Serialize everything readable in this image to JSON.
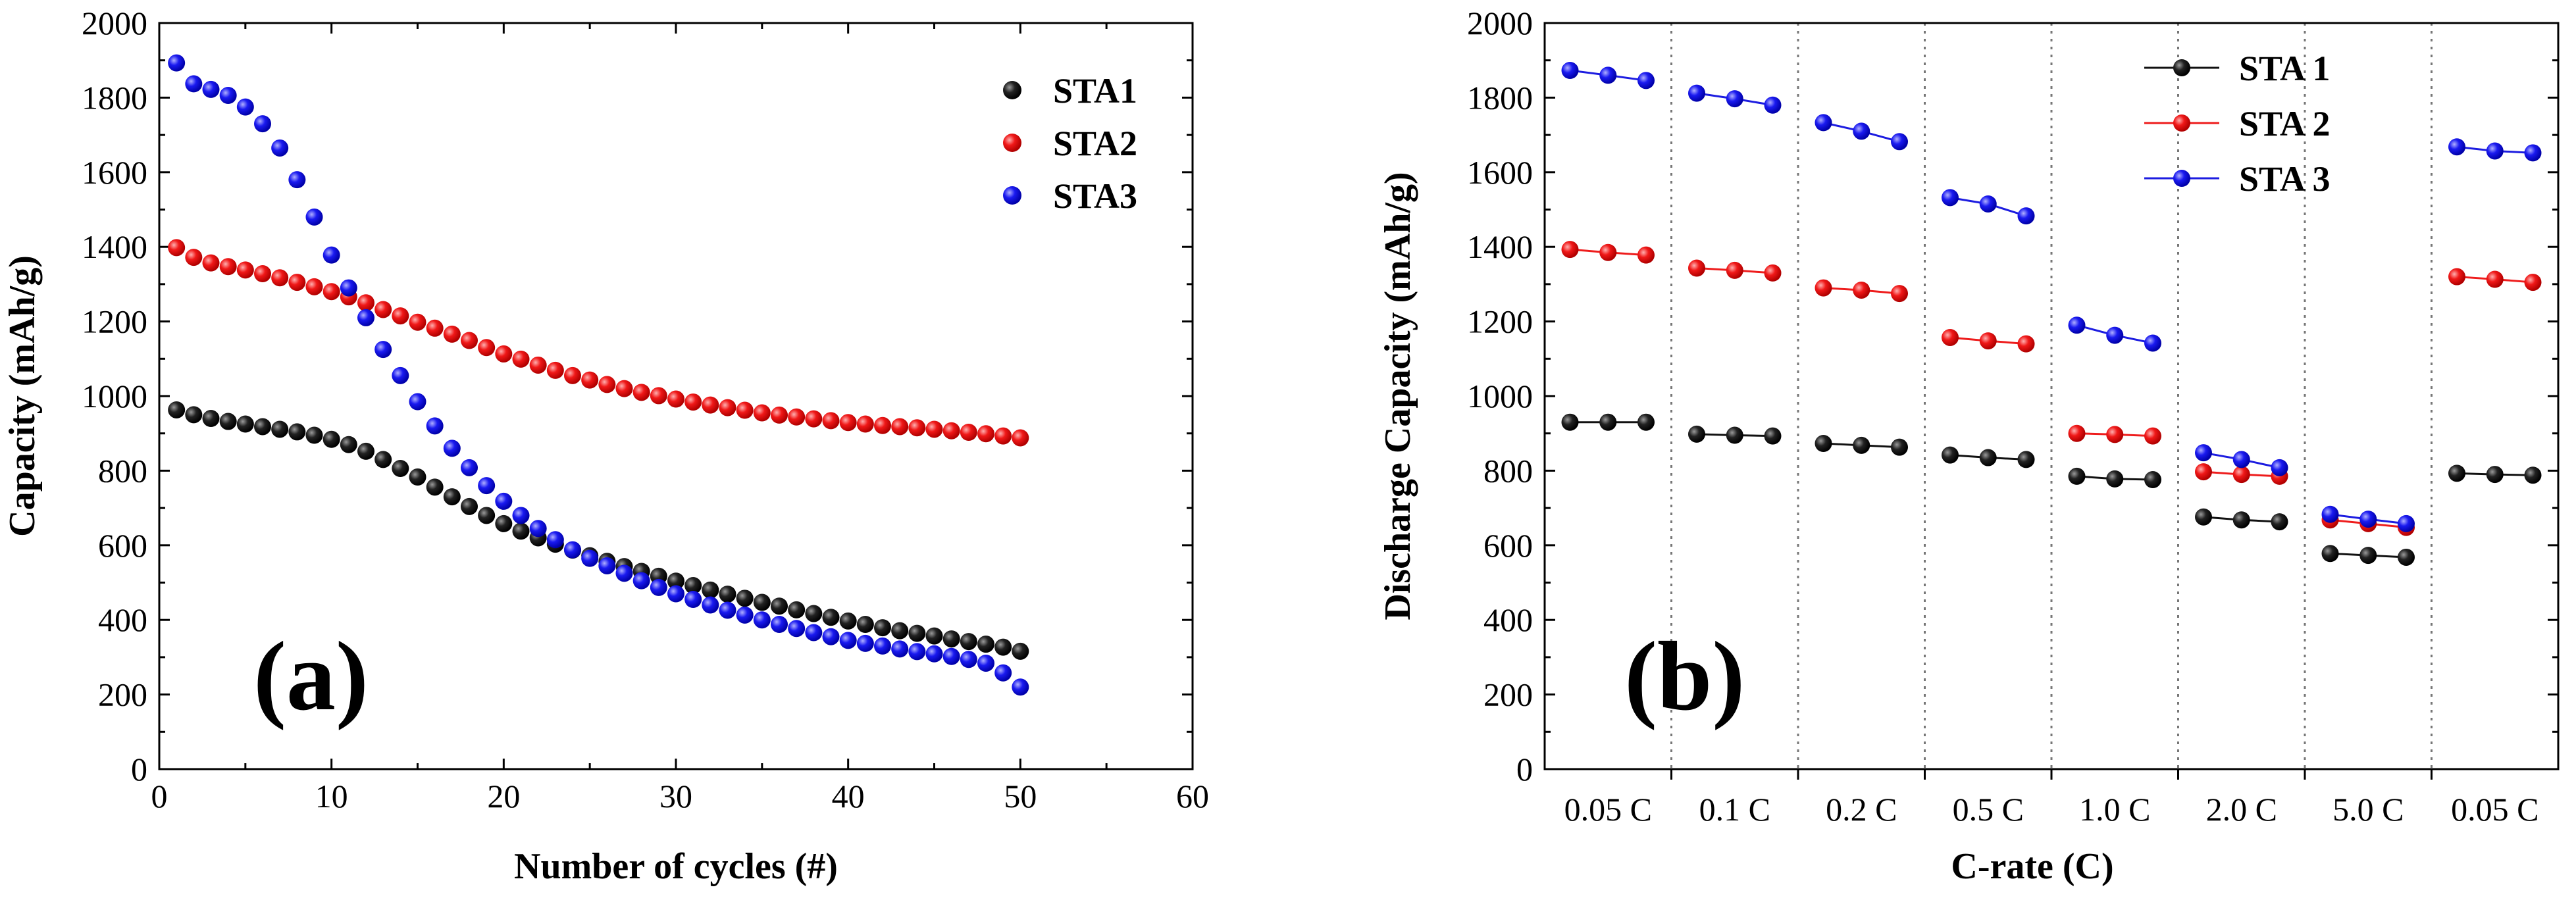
{
  "chart_data": [
    {
      "type": "scatter",
      "panel_label": "(a)",
      "xlabel": "Number of cycles (#)",
      "ylabel": "Capacity (mAh/g)",
      "xlim": [
        0,
        60
      ],
      "ylim": [
        0,
        2000
      ],
      "xticks": [
        "0",
        "10",
        "20",
        "30",
        "40",
        "50",
        "60"
      ],
      "yticks": [
        "0",
        "200",
        "400",
        "600",
        "800",
        "1000",
        "1200",
        "1400",
        "1600",
        "1800",
        "2000"
      ],
      "legend_position": "top-right",
      "x": [
        1,
        2,
        3,
        4,
        5,
        6,
        7,
        8,
        9,
        10,
        11,
        12,
        13,
        14,
        15,
        16,
        17,
        18,
        19,
        20,
        21,
        22,
        23,
        24,
        25,
        26,
        27,
        28,
        29,
        30,
        31,
        32,
        33,
        34,
        35,
        36,
        37,
        38,
        39,
        40,
        41,
        42,
        43,
        44,
        45,
        46,
        47,
        48,
        49,
        50
      ],
      "series": [
        {
          "name": "STA1",
          "color": "#111111",
          "values": [
            963,
            950,
            940,
            932,
            925,
            918,
            911,
            904,
            895,
            884,
            870,
            852,
            830,
            806,
            783,
            756,
            730,
            704,
            680,
            658,
            638,
            620,
            603,
            587,
            572,
            557,
            543,
            530,
            517,
            504,
            492,
            480,
            469,
            458,
            447,
            437,
            427,
            417,
            407,
            397,
            388,
            379,
            371,
            364,
            357,
            349,
            342,
            335,
            327,
            316
          ]
        },
        {
          "name": "STA2",
          "color": "#ee1c1c",
          "values": [
            1398,
            1372,
            1357,
            1347,
            1338,
            1328,
            1317,
            1305,
            1293,
            1280,
            1266,
            1250,
            1232,
            1215,
            1198,
            1182,
            1166,
            1149,
            1130,
            1113,
            1099,
            1083,
            1069,
            1055,
            1043,
            1031,
            1020,
            1010,
            1001,
            992,
            984,
            976,
            969,
            962,
            955,
            949,
            944,
            939,
            934,
            929,
            925,
            921,
            918,
            915,
            911,
            907,
            903,
            899,
            893,
            888
          ]
        },
        {
          "name": "STA3",
          "color": "#1c1ce0",
          "values": [
            1893,
            1837,
            1822,
            1806,
            1775,
            1730,
            1665,
            1580,
            1480,
            1378,
            1290,
            1210,
            1125,
            1055,
            985,
            920,
            860,
            808,
            760,
            718,
            680,
            645,
            615,
            588,
            565,
            545,
            525,
            505,
            487,
            470,
            455,
            440,
            426,
            413,
            400,
            388,
            377,
            366,
            355,
            345,
            337,
            330,
            322,
            315,
            309,
            302,
            294,
            284,
            258,
            220
          ]
        }
      ]
    },
    {
      "type": "scatter",
      "panel_label": "(b)",
      "xlabel": "C-rate (C)",
      "ylabel": "Discharge Capacity (mAh/g)",
      "ylim": [
        0,
        2000
      ],
      "yticks": [
        "0",
        "200",
        "400",
        "600",
        "800",
        "1000",
        "1200",
        "1400",
        "1600",
        "1800",
        "2000"
      ],
      "categories": [
        "0.05 C",
        "0.1 C",
        "0.2 C",
        "0.5 C",
        "1.0 C",
        "2.0 C",
        "5.0 C",
        "0.05 C"
      ],
      "points_per_category": 3,
      "legend_position": "top-right",
      "series": [
        {
          "name": "STA 1",
          "color": "#111111",
          "values": [
            [
              930,
              930,
              930
            ],
            [
              898,
              895,
              893
            ],
            [
              873,
              868,
              863
            ],
            [
              842,
              835,
              830
            ],
            [
              785,
              778,
              776
            ],
            [
              676,
              668,
              663
            ],
            [
              578,
              573,
              568
            ],
            [
              793,
              790,
              788
            ]
          ]
        },
        {
          "name": "STA 2",
          "color": "#ee1c1c",
          "values": [
            [
              1393,
              1385,
              1378
            ],
            [
              1343,
              1337,
              1330
            ],
            [
              1290,
              1284,
              1275
            ],
            [
              1157,
              1148,
              1140
            ],
            [
              900,
              897,
              893
            ],
            [
              797,
              790,
              785
            ],
            [
              668,
              658,
              648
            ],
            [
              1320,
              1313,
              1305
            ]
          ]
        },
        {
          "name": "STA 3",
          "color": "#1c1ce0",
          "values": [
            [
              1873,
              1860,
              1846
            ],
            [
              1812,
              1797,
              1780
            ],
            [
              1733,
              1710,
              1682
            ],
            [
              1532,
              1515,
              1483
            ],
            [
              1190,
              1163,
              1142
            ],
            [
              848,
              830,
              808
            ],
            [
              683,
              670,
              658
            ],
            [
              1668,
              1657,
              1652
            ]
          ]
        }
      ]
    }
  ]
}
